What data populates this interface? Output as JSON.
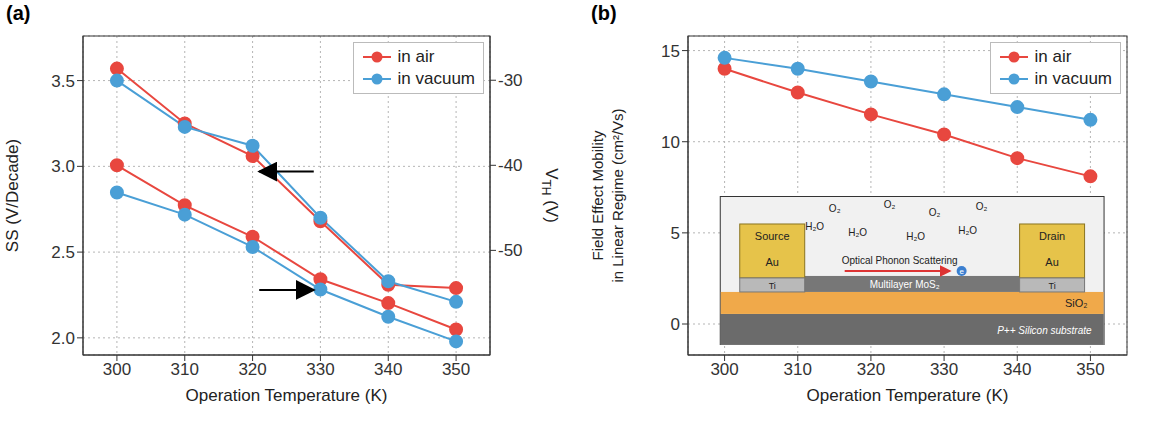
{
  "chart_data": [
    {
      "type": "line",
      "panel_label": "(a)",
      "xlabel": "Operation Temperature (K)",
      "ylabel": "SS (V/Decade)",
      "y2label": {
        "text": "V",
        "subscript": "TH",
        "suffix": " (V)"
      },
      "x": [
        300,
        310,
        320,
        330,
        340,
        350
      ],
      "xlim": [
        295,
        355
      ],
      "xticks": [
        300,
        310,
        320,
        330,
        340,
        350
      ],
      "ylim": [
        1.9,
        3.76
      ],
      "yticks": [
        {
          "value": 2,
          "label": "2.0"
        },
        2.5,
        {
          "value": 3,
          "label": "3.0"
        },
        3.5
      ],
      "y2lim": [
        -62.3,
        -24.8
      ],
      "y2ticks": [
        -30,
        -40,
        -50
      ],
      "grid": true,
      "legend": "upper right",
      "marker": "circle",
      "series": [
        {
          "name": "in air",
          "color": "#e8473f",
          "axis": "y",
          "values": [
            3.57,
            3.25,
            3.06,
            2.68,
            2.31,
            2.29
          ]
        },
        {
          "name": "in vacuum",
          "color": "#4a9fd6",
          "axis": "y",
          "values": [
            3.5,
            3.23,
            3.12,
            2.7,
            2.33,
            2.21
          ]
        },
        {
          "name": "in air",
          "color": "#e8473f",
          "axis": "y2",
          "values": [
            -40.0,
            -44.7,
            -48.4,
            -53.4,
            -56.2,
            -59.3
          ]
        },
        {
          "name": "in vacuum",
          "color": "#4a9fd6",
          "axis": "y2",
          "values": [
            -43.2,
            -45.8,
            -49.6,
            -54.6,
            -57.8,
            -60.7
          ]
        }
      ]
    },
    {
      "type": "line",
      "panel_label": "(b)",
      "xlabel": "Operation Temperature (K)",
      "ylabel": [
        "Field Effect Mobility",
        "in Linear Regime (cm²/Vs)"
      ],
      "x": [
        300,
        310,
        320,
        330,
        340,
        350
      ],
      "xlim": [
        295,
        355
      ],
      "xticks": [
        300,
        310,
        320,
        330,
        340,
        350
      ],
      "ylim": [
        -1.7,
        15.8
      ],
      "yticks": [
        0,
        5,
        10,
        15
      ],
      "grid": true,
      "legend": "upper right",
      "marker": "circle",
      "series": [
        {
          "name": "in air",
          "color": "#e8473f",
          "values": [
            14.0,
            12.7,
            11.5,
            10.4,
            9.1,
            8.1
          ]
        },
        {
          "name": "in vacuum",
          "color": "#4a9fd6",
          "values": [
            14.6,
            14.0,
            13.3,
            12.6,
            11.9,
            11.2
          ]
        }
      ],
      "inset": {
        "source": "Source",
        "drain": "Drain",
        "metal_top": "Au",
        "metal_bottom": "Ti",
        "molecules": [
          "O₂",
          "O₂",
          "O₂",
          "O₂",
          "H₂O",
          "H₂O",
          "H₂O",
          "H₂O"
        ],
        "scattering": "Optical Phonon Scattering",
        "carrier": "e",
        "channel": "Multilayer MoS₂",
        "oxide": "SiO₂",
        "substrate": "P++ Silicon substrate"
      }
    }
  ]
}
